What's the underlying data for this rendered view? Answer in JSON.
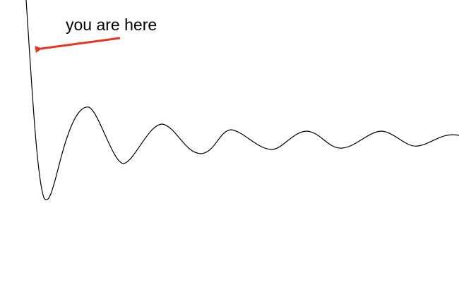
{
  "annotation": {
    "label": "you are here"
  },
  "colors": {
    "curve": "#000000",
    "arrow": "#e8341c",
    "text": "#000000",
    "background": "#ffffff"
  }
}
